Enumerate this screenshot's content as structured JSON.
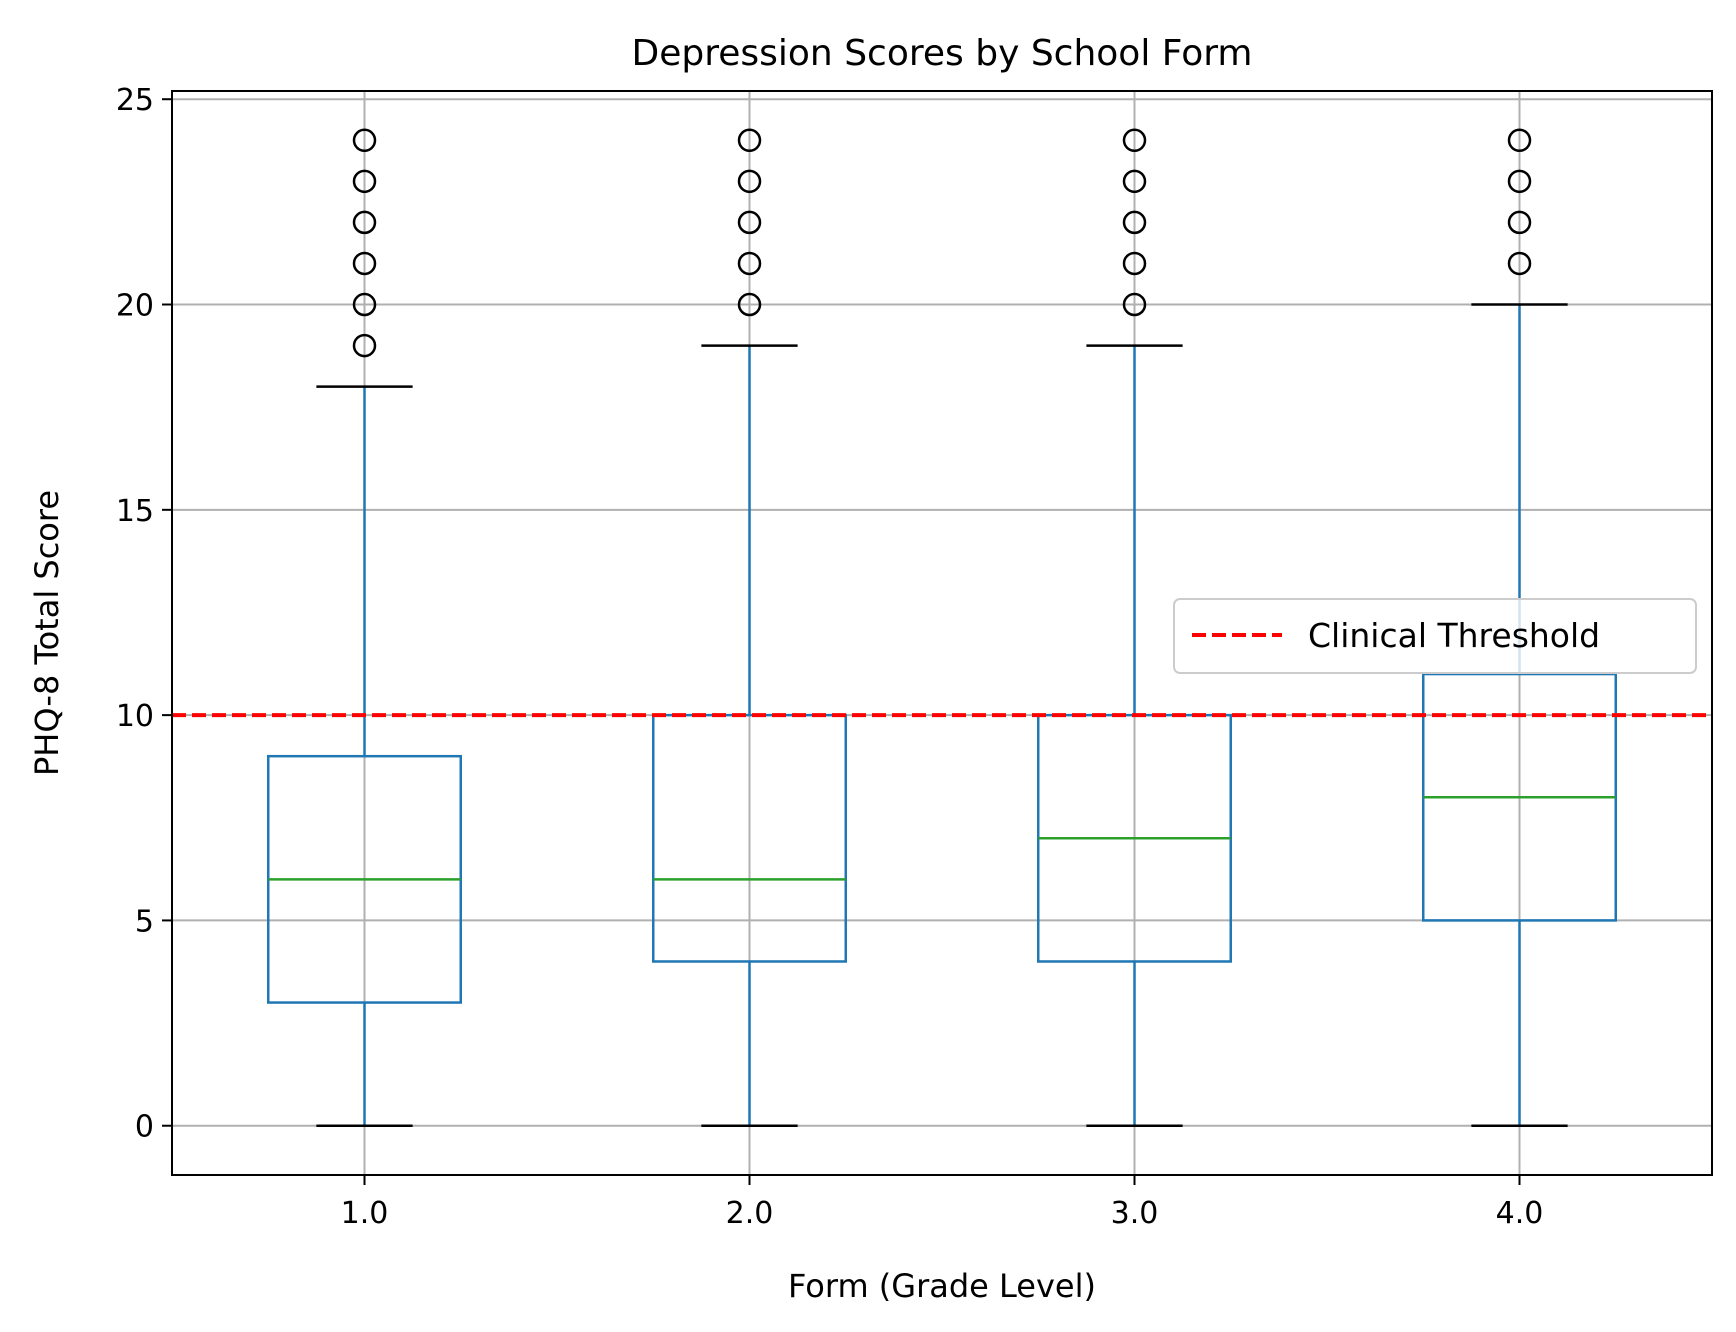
{
  "chart_data": {
    "type": "box",
    "title": "Depression Scores by School Form",
    "xlabel": "Form (Grade Level)",
    "ylabel": "PHQ-8 Total Score",
    "categories": [
      "1.0",
      "2.0",
      "3.0",
      "4.0"
    ],
    "ylim": [
      -1.2,
      25.2
    ],
    "yticks": [
      0,
      5,
      10,
      15,
      20,
      25
    ],
    "grid": true,
    "boxes": [
      {
        "category": "1.0",
        "whisker_low": 0,
        "q1": 3,
        "median": 6,
        "q3": 9,
        "whisker_high": 18,
        "outliers": [
          19,
          20,
          21,
          22,
          23,
          24
        ]
      },
      {
        "category": "2.0",
        "whisker_low": 0,
        "q1": 4,
        "median": 6,
        "q3": 10,
        "whisker_high": 19,
        "outliers": [
          20,
          21,
          22,
          23,
          24
        ]
      },
      {
        "category": "3.0",
        "whisker_low": 0,
        "q1": 4,
        "median": 7,
        "q3": 10,
        "whisker_high": 19,
        "outliers": [
          20,
          21,
          22,
          23,
          24
        ]
      },
      {
        "category": "4.0",
        "whisker_low": 0,
        "q1": 5,
        "median": 8,
        "q3": 11,
        "whisker_high": 20,
        "outliers": [
          21,
          22,
          23,
          24
        ]
      }
    ],
    "reference_line": {
      "y": 10,
      "label": "Clinical Threshold",
      "color": "#ff0000",
      "style": "dashed"
    },
    "legend": {
      "placement": "center-right",
      "entries": [
        "Clinical Threshold"
      ]
    },
    "colors": {
      "box": "#1f77b4",
      "median": "#2ca02c",
      "caps": "#000000",
      "outlier": "#000000",
      "grid": "#b0b0b0"
    }
  }
}
